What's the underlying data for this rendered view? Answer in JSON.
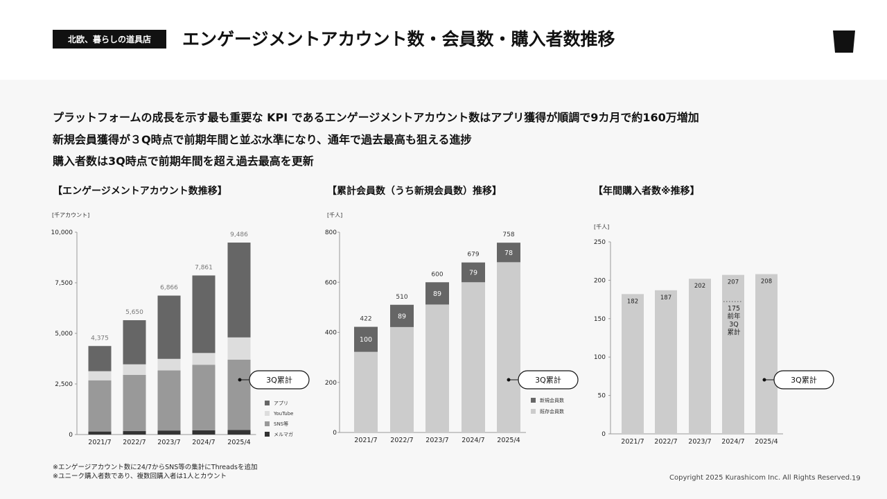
{
  "header": {
    "badge": "北欧、暮らしの道具店",
    "title": "エンゲージメントアカウント数・会員数・購入者数推移"
  },
  "summary": [
    "プラットフォームの成長を示す最も重要な KPI であるエンゲージメントアカウント数はアプリ獲得が順調で9カ月で約160万増加",
    "新規会員獲得が３Q時点で前期年間と並ぶ水準になり、通年で過去最高も狙える進捗",
    "購入者数は3Q時点で前期年間を超え過去最高を更新"
  ],
  "colors": {
    "dark": "#666666",
    "light": "#cccccc",
    "lighter": "#dddddd",
    "mid": "#999999",
    "black": "#333333"
  },
  "chart_data": [
    {
      "type": "bar",
      "stacked": true,
      "title": "【エンゲージメントアカウント数推移】",
      "unit": "[千アカウント]",
      "categories": [
        "2021/7",
        "2022/7",
        "2023/7",
        "2024/7",
        "2025/4"
      ],
      "ylim": [
        0,
        10000
      ],
      "yticks": [
        "0",
        "2,500",
        "5,000",
        "7,500",
        "10,000"
      ],
      "series": [
        {
          "name": "メルマガ",
          "color": "#333333",
          "values": [
            150,
            170,
            200,
            210,
            230
          ]
        },
        {
          "name": "SNS等",
          "color": "#999999",
          "values": [
            2530,
            2780,
            2970,
            3240,
            3470
          ]
        },
        {
          "name": "YouTube",
          "color": "#dddddd",
          "values": [
            450,
            520,
            570,
            580,
            1100
          ]
        },
        {
          "name": "アプリ",
          "color": "#666666",
          "values": [
            1245,
            2180,
            3126,
            3831,
            4686
          ]
        }
      ],
      "totals": [
        "4,375",
        "5,650",
        "6,866",
        "7,861",
        "9,486"
      ],
      "callout": "3Q累計"
    },
    {
      "type": "bar",
      "stacked": true,
      "title": "【累計会員数（うち新規会員数）推移】",
      "unit": "[千人]",
      "categories": [
        "2021/7",
        "2022/7",
        "2023/7",
        "2024/7",
        "2025/4"
      ],
      "ylim": [
        0,
        800
      ],
      "yticks": [
        "0",
        "200",
        "400",
        "600",
        "800"
      ],
      "series": [
        {
          "name": "既存会員数",
          "color": "#cccccc",
          "values": [
            322,
            421,
            511,
            600,
            680
          ]
        },
        {
          "name": "新規会員数",
          "color": "#666666",
          "values": [
            100,
            89,
            89,
            79,
            78
          ]
        }
      ],
      "new_labels": [
        "100",
        "89",
        "89",
        "79",
        "78"
      ],
      "totals": [
        "422",
        "510",
        "600",
        "679",
        "758"
      ],
      "callout": "3Q累計"
    },
    {
      "type": "bar",
      "title": "【年間購入者数※推移】",
      "unit": "[千人]",
      "categories": [
        "2021/7",
        "2022/7",
        "2023/7",
        "2024/7",
        "2025/4"
      ],
      "ylim": [
        0,
        250
      ],
      "yticks": [
        "0",
        "50",
        "100",
        "150",
        "200",
        "250"
      ],
      "values": [
        182,
        187,
        202,
        207,
        208
      ],
      "value_labels": [
        "182",
        "187",
        "202",
        "207",
        "208"
      ],
      "color": "#cccccc",
      "marker": {
        "value": 175,
        "category_index": 3,
        "label": [
          "175",
          "前年",
          "3Q",
          "累計"
        ]
      },
      "callout": "3Q累計"
    }
  ],
  "notes": [
    "※エンゲージアカウント数に24/7からSNS等の集計にThreadsを追加",
    "※ユニーク購入者数であり、複数回購入者は1人とカウント"
  ],
  "footer": {
    "copyright": "Copyright 2025 Kurashicom Inc. All Rights Reserved.",
    "page": "19"
  }
}
